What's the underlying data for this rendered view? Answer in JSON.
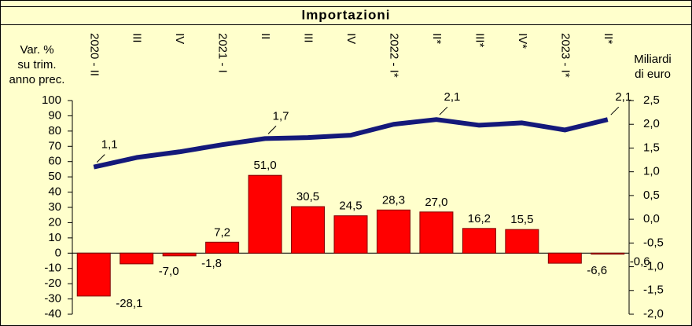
{
  "chart_data": {
    "type": "bar",
    "title": "Importazioni",
    "y_label": [
      "Var. %",
      "su trim.",
      "anno prec."
    ],
    "y2_label": [
      "Miliardi",
      "di euro"
    ],
    "categories": [
      "2020 - II",
      "III",
      "IV",
      "2021 - I",
      "II",
      "III",
      "IV",
      "2022 - I*",
      "II*",
      "III*",
      "IV*",
      "2023 - I*",
      "II*"
    ],
    "series": [
      {
        "type": "bar",
        "color": "#ff0000",
        "values": [
          -28.1,
          -7.0,
          -1.8,
          7.2,
          51.0,
          30.5,
          24.5,
          28.3,
          27.0,
          16.2,
          15.5,
          -6.6,
          -0.6
        ],
        "value_labels": [
          "-28,1",
          "-7,0",
          "-1,8",
          "7,2",
          "51,0",
          "30,5",
          "24,5",
          "28,3",
          "27,0",
          "16,2",
          "15,5",
          "-6,6",
          "-0,6"
        ]
      },
      {
        "type": "line",
        "axis": "y2",
        "color": "#14197a",
        "values": [
          1.1,
          1.3,
          1.42,
          1.57,
          1.7,
          1.72,
          1.77,
          2.0,
          2.1,
          1.98,
          2.03,
          1.88,
          2.1
        ],
        "value_labels": [
          "1,1",
          null,
          null,
          null,
          "1,7",
          null,
          null,
          null,
          "2,1",
          null,
          null,
          null,
          "2,1"
        ]
      }
    ],
    "ylim": [
      -40,
      100
    ],
    "yticks": [
      -40,
      -30,
      -20,
      -10,
      0,
      10,
      20,
      30,
      40,
      50,
      60,
      70,
      80,
      90,
      100
    ],
    "y2lim": [
      -2.0,
      2.5
    ],
    "y2ticks": [
      {
        "value": -2.0,
        "label": "-2,0"
      },
      {
        "value": -1.5,
        "label": "-1,5"
      },
      {
        "value": -1.0,
        "label": "-1,0"
      },
      {
        "value": -0.5,
        "label": "-0,5"
      },
      {
        "value": 0.0,
        "label": "0,0"
      },
      {
        "value": 0.5,
        "label": "0,5"
      },
      {
        "value": 1.0,
        "label": "1,0"
      },
      {
        "value": 1.5,
        "label": "1,5"
      },
      {
        "value": 2.0,
        "label": "2,0"
      },
      {
        "value": 2.5,
        "label": "2,5"
      }
    ]
  }
}
